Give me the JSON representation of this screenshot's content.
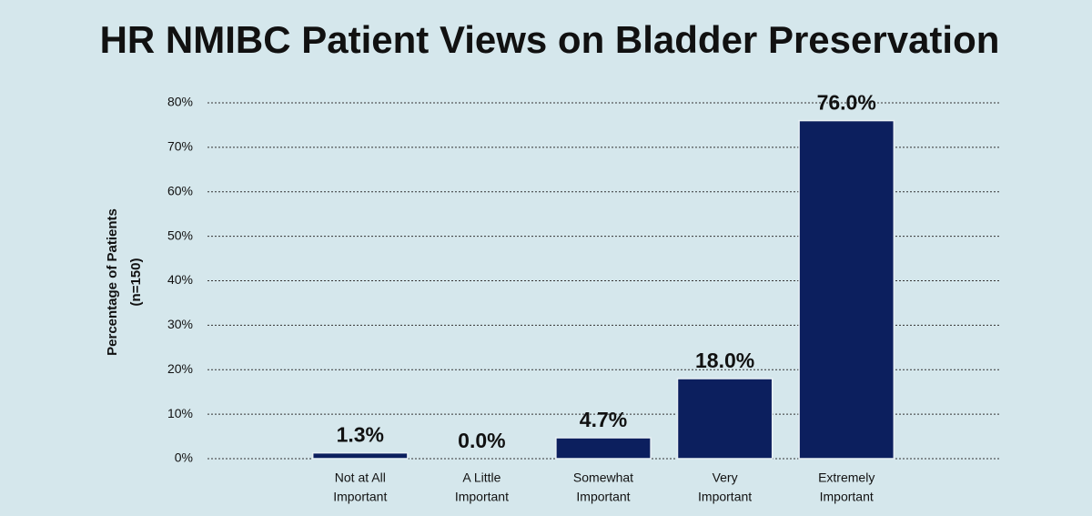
{
  "chart_data": {
    "type": "bar",
    "title": "HR NMIBC Patient Views on Bladder Preservation",
    "ylabel": [
      "Percentage of Patients",
      "(n=150)"
    ],
    "categories": [
      [
        "Not at All",
        "Important"
      ],
      [
        "A Little",
        "Important"
      ],
      [
        "Somewhat",
        "Important"
      ],
      [
        "Very",
        "Important"
      ],
      [
        "Extremely",
        "Important"
      ]
    ],
    "values": [
      1.3,
      0,
      4.7,
      18,
      76
    ],
    "value_labels": [
      "1.3%",
      "0.0%",
      "4.7%",
      "18.0%",
      "76.0%"
    ],
    "color": "#0c1f5e",
    "ylim": [
      0,
      80
    ],
    "yticks": [
      {
        "value": 0,
        "label": "0%"
      },
      {
        "value": 10,
        "label": "10%"
      },
      {
        "value": 20,
        "label": "20%"
      },
      {
        "value": 30,
        "label": "30%"
      },
      {
        "value": 40,
        "label": "40%"
      },
      {
        "value": 50,
        "label": "50%"
      },
      {
        "value": 60,
        "label": "60%"
      },
      {
        "value": 70,
        "label": "70%"
      },
      {
        "value": 80,
        "label": "80%"
      }
    ],
    "grid": true
  }
}
